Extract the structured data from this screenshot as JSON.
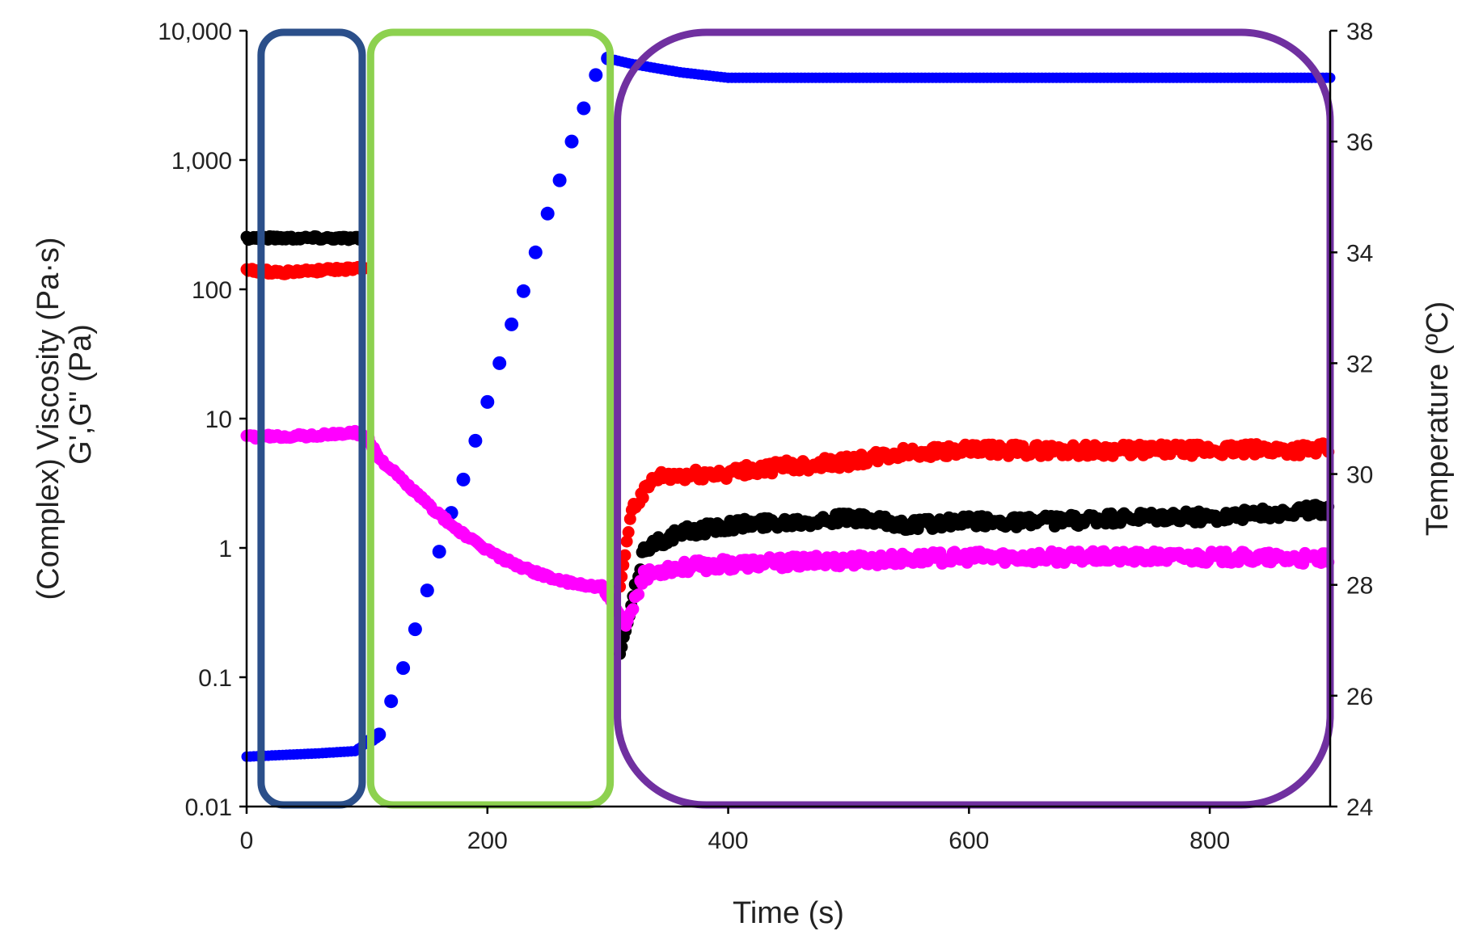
{
  "chart_data": {
    "type": "scatter",
    "xlabel": "Time (s)",
    "ylabel_left_line1": "(Complex) Viscosity (Pa·s)",
    "ylabel_left_line2": "G',G'' (Pa)",
    "ylabel_right": "Temperature (ºC)",
    "xlim": [
      0,
      900
    ],
    "x_ticks": [
      0,
      200,
      400,
      600,
      800
    ],
    "x_tick_labels": [
      "0",
      "200",
      "400",
      "600",
      "800"
    ],
    "ylim_left": [
      0.01,
      10000
    ],
    "y_scale_left": "log",
    "y_ticks_left": [
      0.01,
      0.1,
      1,
      10,
      100,
      1000,
      10000
    ],
    "y_tick_labels_left": [
      "0.01",
      "0.1",
      "1",
      "10",
      "100",
      "1,000",
      "10,000"
    ],
    "ylim_right": [
      24,
      38
    ],
    "y_ticks_right": [
      24,
      26,
      28,
      30,
      32,
      34,
      36,
      38
    ],
    "y_tick_labels_right": [
      "24",
      "26",
      "28",
      "30",
      "32",
      "34",
      "36",
      "38"
    ],
    "grid": false,
    "legend": "none",
    "series": [
      {
        "color": "#0000ff",
        "axis": "right",
        "points": [
          [
            0,
            24.9
          ],
          [
            30,
            24.93
          ],
          [
            60,
            24.96
          ],
          [
            90,
            25.0
          ],
          [
            110,
            25.3
          ],
          [
            120,
            25.9
          ],
          [
            130,
            26.5
          ],
          [
            140,
            27.2
          ],
          [
            150,
            27.9
          ],
          [
            160,
            28.6
          ],
          [
            170,
            29.3
          ],
          [
            180,
            29.9
          ],
          [
            190,
            30.6
          ],
          [
            200,
            31.3
          ],
          [
            210,
            32.0
          ],
          [
            220,
            32.7
          ],
          [
            230,
            33.3
          ],
          [
            240,
            34.0
          ],
          [
            250,
            34.7
          ],
          [
            260,
            35.3
          ],
          [
            270,
            36.0
          ],
          [
            280,
            36.6
          ],
          [
            290,
            37.2
          ],
          [
            300,
            37.5
          ],
          [
            320,
            37.4
          ],
          [
            360,
            37.25
          ],
          [
            400,
            37.15
          ],
          [
            500,
            37.15
          ],
          [
            600,
            37.15
          ],
          [
            700,
            37.15
          ],
          [
            800,
            37.15
          ],
          [
            900,
            37.15
          ]
        ]
      },
      {
        "color": "#000000",
        "axis": "left",
        "points": [
          [
            0,
            250
          ],
          [
            40,
            250
          ],
          [
            70,
            250
          ],
          [
            95,
            248
          ],
          [
            310,
            0.15
          ],
          [
            318,
            0.3
          ],
          [
            330,
            1.0
          ],
          [
            360,
            1.3
          ],
          [
            400,
            1.5
          ],
          [
            450,
            1.6
          ],
          [
            500,
            1.7
          ],
          [
            550,
            1.5
          ],
          [
            600,
            1.6
          ],
          [
            650,
            1.6
          ],
          [
            700,
            1.65
          ],
          [
            750,
            1.7
          ],
          [
            800,
            1.75
          ],
          [
            850,
            1.85
          ],
          [
            900,
            2.0
          ]
        ]
      },
      {
        "color": "#ff0000",
        "axis": "left",
        "points": [
          [
            0,
            140
          ],
          [
            30,
            135
          ],
          [
            60,
            140
          ],
          [
            100,
            145
          ],
          [
            310,
            0.5
          ],
          [
            320,
            2.0
          ],
          [
            340,
            3.5
          ],
          [
            400,
            3.8
          ],
          [
            450,
            4.3
          ],
          [
            500,
            4.6
          ],
          [
            550,
            5.5
          ],
          [
            600,
            5.7
          ],
          [
            700,
            5.7
          ],
          [
            800,
            5.7
          ],
          [
            900,
            5.8
          ]
        ]
      },
      {
        "color": "#ff00ff",
        "axis": "left",
        "points": [
          [
            0,
            7.2
          ],
          [
            30,
            7.3
          ],
          [
            60,
            7.4
          ],
          [
            90,
            7.8
          ],
          [
            100,
            7.2
          ],
          [
            110,
            5.0
          ],
          [
            130,
            3.3
          ],
          [
            150,
            2.2
          ],
          [
            170,
            1.5
          ],
          [
            190,
            1.1
          ],
          [
            210,
            0.85
          ],
          [
            230,
            0.7
          ],
          [
            250,
            0.6
          ],
          [
            270,
            0.53
          ],
          [
            295,
            0.5
          ],
          [
            315,
            0.25
          ],
          [
            330,
            0.6
          ],
          [
            350,
            0.7
          ],
          [
            400,
            0.75
          ],
          [
            500,
            0.8
          ],
          [
            600,
            0.85
          ],
          [
            700,
            0.85
          ],
          [
            800,
            0.85
          ],
          [
            900,
            0.82
          ]
        ]
      }
    ],
    "annotations": [
      {
        "shape": "rounded-rectangle",
        "color": "#2b4f8a",
        "x_range": [
          12,
          96
        ]
      },
      {
        "shape": "rounded-rectangle",
        "color": "#8dd14f",
        "x_range": [
          103,
          302
        ]
      },
      {
        "shape": "rounded-rectangle",
        "color": "#7030a0",
        "x_range": [
          308,
          900
        ]
      }
    ]
  }
}
